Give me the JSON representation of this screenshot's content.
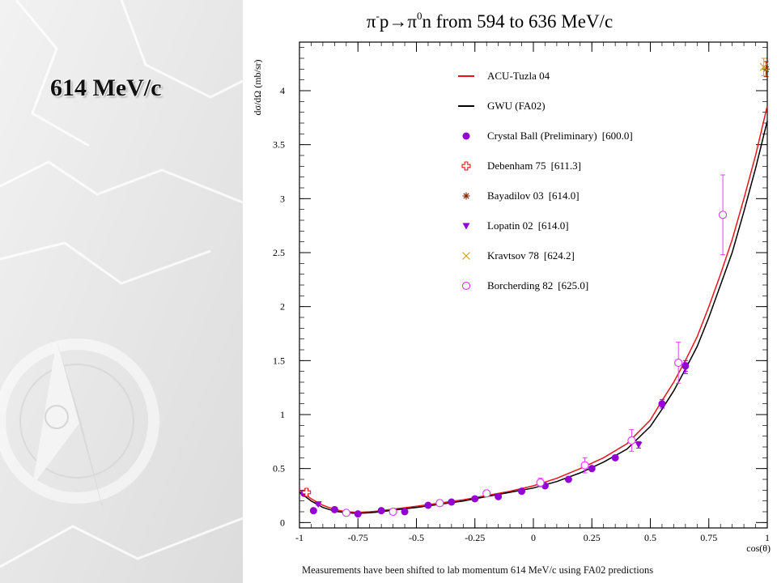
{
  "slide": {
    "title": "614 MeV/c",
    "footnote": "Measurements have been shifted to lab momentum 614 MeV/c using FA02 predictions"
  },
  "chart_data": {
    "type": "scatter",
    "title_parts": {
      "a": "π",
      "a_sup": "-",
      "b": "p",
      "arrow": "→",
      "c": "π",
      "c_sup": "0",
      "d": "n from 594 to 636 MeV/c"
    },
    "xlabel": "cos(θ)",
    "ylabel": "dσ/dΩ (mb/sr)",
    "xlim": [
      -1,
      1
    ],
    "ylim": [
      -0.05,
      4.45
    ],
    "xticks": [
      {
        "v": -1,
        "label": "-1"
      },
      {
        "v": -0.75,
        "label": "-0.75"
      },
      {
        "v": -0.5,
        "label": "-0.5"
      },
      {
        "v": -0.25,
        "label": "-0.25"
      },
      {
        "v": 0,
        "label": "0"
      },
      {
        "v": 0.25,
        "label": "0.25"
      },
      {
        "v": 0.5,
        "label": "0.5"
      },
      {
        "v": 0.75,
        "label": "0.75"
      },
      {
        "v": 1,
        "label": "1"
      }
    ],
    "yticks": [
      {
        "v": 0,
        "label": "0"
      },
      {
        "v": 0.5,
        "label": "0.5"
      },
      {
        "v": 1,
        "label": "1"
      },
      {
        "v": 1.5,
        "label": "1.5"
      },
      {
        "v": 2,
        "label": "2"
      },
      {
        "v": 2.5,
        "label": "2.5"
      },
      {
        "v": 3,
        "label": "3"
      },
      {
        "v": 3.5,
        "label": "3.5"
      },
      {
        "v": 4,
        "label": "4"
      }
    ],
    "legend_position": "top-right",
    "curves": [
      {
        "name": "ACU-Tuzla 04",
        "color": "#e8141c",
        "x": [
          -1,
          -0.95,
          -0.9,
          -0.85,
          -0.8,
          -0.75,
          -0.7,
          -0.65,
          -0.6,
          -0.5,
          -0.4,
          -0.3,
          -0.2,
          -0.1,
          0,
          0.1,
          0.2,
          0.3,
          0.4,
          0.5,
          0.55,
          0.6,
          0.65,
          0.7,
          0.75,
          0.8,
          0.85,
          0.9,
          0.95,
          1.0
        ],
        "y": [
          0.3,
          0.22,
          0.16,
          0.12,
          0.1,
          0.095,
          0.1,
          0.11,
          0.125,
          0.15,
          0.18,
          0.21,
          0.25,
          0.29,
          0.34,
          0.41,
          0.5,
          0.6,
          0.73,
          0.95,
          1.13,
          1.3,
          1.5,
          1.72,
          2.0,
          2.3,
          2.62,
          3.0,
          3.4,
          3.86
        ]
      },
      {
        "name": "GWU (FA02)",
        "color": "#000000",
        "x": [
          -1,
          -0.95,
          -0.9,
          -0.85,
          -0.8,
          -0.75,
          -0.7,
          -0.65,
          -0.6,
          -0.5,
          -0.4,
          -0.3,
          -0.2,
          -0.1,
          0,
          0.1,
          0.2,
          0.3,
          0.4,
          0.5,
          0.55,
          0.6,
          0.65,
          0.7,
          0.75,
          0.8,
          0.85,
          0.9,
          0.95,
          1.0
        ],
        "y": [
          0.28,
          0.2,
          0.14,
          0.105,
          0.09,
          0.085,
          0.09,
          0.1,
          0.115,
          0.14,
          0.17,
          0.2,
          0.24,
          0.28,
          0.32,
          0.38,
          0.46,
          0.56,
          0.68,
          0.89,
          1.05,
          1.22,
          1.42,
          1.63,
          1.9,
          2.2,
          2.5,
          2.88,
          3.28,
          3.72
        ]
      }
    ],
    "series": [
      {
        "name": "Crystal Ball (Preliminary)",
        "bracket": "[600.0]",
        "marker": "filled-circle",
        "color": "#9400d3",
        "points": [
          [
            -0.98,
            0.27,
            0.02
          ],
          [
            -0.94,
            0.11,
            0.02
          ],
          [
            -0.85,
            0.12,
            0.01
          ],
          [
            -0.75,
            0.08,
            0.01
          ],
          [
            -0.65,
            0.11,
            0.01
          ],
          [
            -0.55,
            0.1,
            0.01
          ],
          [
            -0.45,
            0.16,
            0.01
          ],
          [
            -0.35,
            0.19,
            0.01
          ],
          [
            -0.25,
            0.22,
            0.01
          ],
          [
            -0.15,
            0.24,
            0.01
          ],
          [
            -0.05,
            0.29,
            0.01
          ],
          [
            0.05,
            0.34,
            0.01
          ],
          [
            0.15,
            0.4,
            0.01
          ],
          [
            0.25,
            0.5,
            0.01
          ],
          [
            0.35,
            0.6,
            0.02
          ],
          [
            0.55,
            1.1,
            0.04
          ],
          [
            0.65,
            1.45,
            0.05
          ]
        ]
      },
      {
        "name": "Debenham 75",
        "bracket": "[611.3]",
        "marker": "open-cross",
        "color": "#e8141c",
        "points": [
          [
            -0.97,
            0.28,
            0.03
          ]
        ]
      },
      {
        "name": "Bayadilov 03",
        "bracket": "[614.0]",
        "marker": "asterisk",
        "color": "#8b2500",
        "points": [
          [
            0.995,
            4.2,
            0.07
          ]
        ]
      },
      {
        "name": "Lopatin 02",
        "bracket": "[614.0]",
        "marker": "triangle-down",
        "color": "#9400d3",
        "points": [
          [
            -0.92,
            0.17,
            0.01
          ],
          [
            0.45,
            0.72,
            0.03
          ],
          [
            0.65,
            1.43,
            0.05
          ]
        ]
      },
      {
        "name": "Kravtsov 78",
        "bracket": "[624.2]",
        "marker": "x",
        "color": "#d4a017",
        "points": [
          [
            0.985,
            4.22,
            0.08
          ]
        ]
      },
      {
        "name": "Borcherding 82",
        "bracket": "[625.0]",
        "marker": "open-circle",
        "color": "#e040fb",
        "points": [
          [
            -0.8,
            0.09,
            0.01
          ],
          [
            -0.6,
            0.1,
            0.01
          ],
          [
            -0.4,
            0.18,
            0.01
          ],
          [
            -0.2,
            0.27,
            0.03
          ],
          [
            0.03,
            0.37,
            0.04
          ],
          [
            0.22,
            0.53,
            0.07
          ],
          [
            0.42,
            0.76,
            0.1
          ],
          [
            0.62,
            1.48,
            0.19
          ],
          [
            0.81,
            2.85,
            0.37
          ]
        ]
      }
    ]
  }
}
